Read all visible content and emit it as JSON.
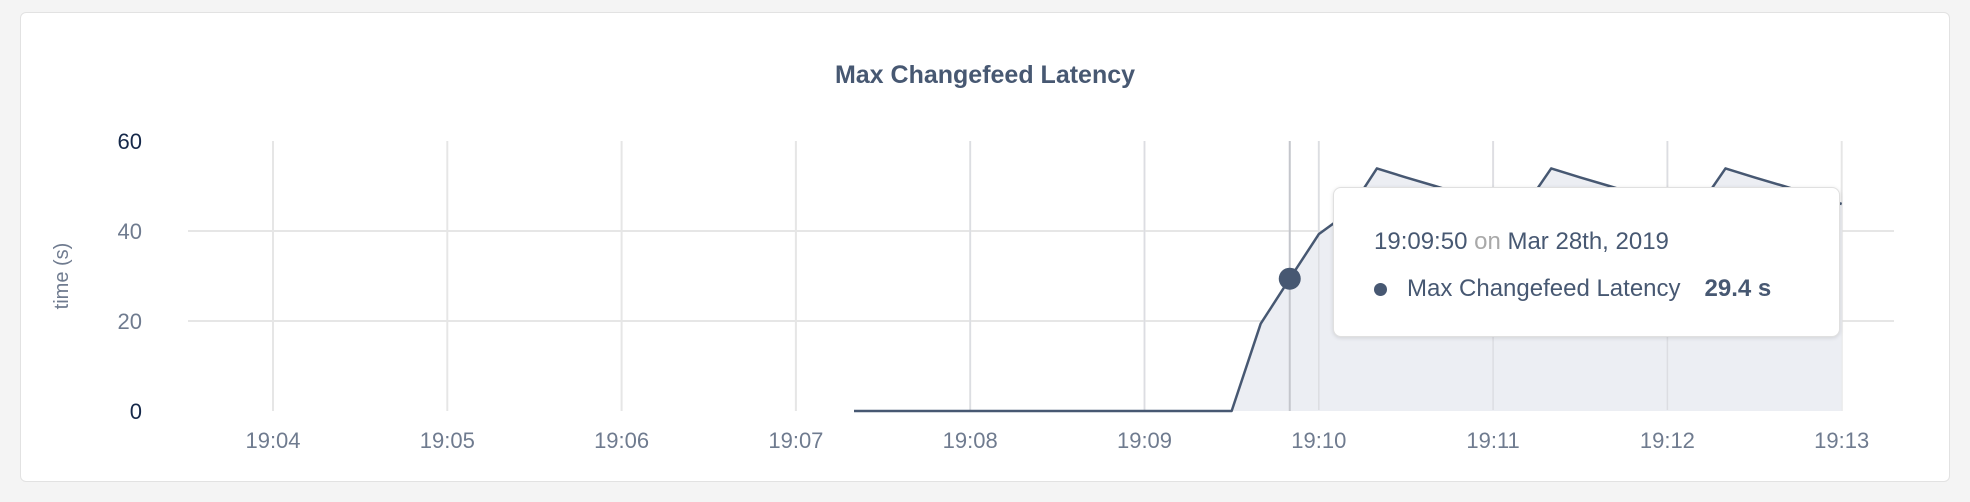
{
  "chart_data": {
    "type": "area",
    "title": "Max Changefeed Latency",
    "ylabel": "time (s)",
    "xlabel": "",
    "ylim": [
      0,
      60
    ],
    "yticks": [
      "0",
      "20",
      "40",
      "60"
    ],
    "xticks": [
      "19:04",
      "19:05",
      "19:06",
      "19:07",
      "19:08",
      "19:09",
      "19:10",
      "19:11",
      "19:12",
      "19:13"
    ],
    "grid": true,
    "series": [
      {
        "name": "Max Changefeed Latency",
        "color": "#475872",
        "fill": "#eceef3",
        "points": [
          [
            "19:07:20",
            0
          ],
          [
            "19:09:30",
            0
          ],
          [
            "19:09:40",
            19.4
          ],
          [
            "19:09:50",
            29.4
          ],
          [
            "19:10:00",
            39.3
          ],
          [
            "19:10:10",
            44
          ],
          [
            "19:10:20",
            53.9
          ],
          [
            "19:10:30",
            51.9
          ],
          [
            "19:10:40",
            50
          ],
          [
            "19:10:50",
            48
          ],
          [
            "19:11:00",
            46.2
          ],
          [
            "19:11:10",
            44.5
          ],
          [
            "19:11:20",
            53.9
          ],
          [
            "19:11:30",
            51.9
          ],
          [
            "19:11:40",
            50
          ],
          [
            "19:11:50",
            48
          ],
          [
            "19:12:00",
            46.2
          ],
          [
            "19:12:10",
            44.5
          ],
          [
            "19:12:20",
            53.9
          ],
          [
            "19:12:30",
            51.9
          ],
          [
            "19:12:40",
            50
          ],
          [
            "19:12:50",
            48
          ],
          [
            "19:13:00",
            46
          ]
        ]
      }
    ],
    "hover": {
      "time": "19:09:50",
      "value": 29.4
    }
  },
  "tooltip": {
    "time": "19:09:50",
    "on": "on",
    "date": "Mar 28th, 2019",
    "series_name": "Max Changefeed Latency",
    "value": "29.4 s"
  }
}
